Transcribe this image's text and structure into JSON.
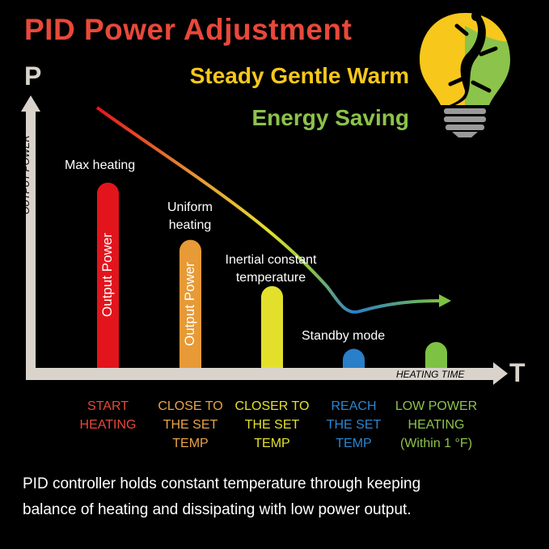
{
  "header": {
    "title": "PID Power Adjustment",
    "subtitle1": "Steady Gentle Warm",
    "subtitle2": "Energy Saving",
    "logo": "gecko-lightbulb-logo"
  },
  "colors": {
    "title": "#e8483a",
    "yellow": "#f7c71c",
    "green": "#8cc34a",
    "axis": "#d9d3cc",
    "red": "#e3151c",
    "orange": "#e79a35",
    "lime": "#e3e02c",
    "blue": "#2a7fc9",
    "lightgreen": "#7dc242"
  },
  "chart_data": {
    "type": "bar",
    "y_axis_letter": "P",
    "x_axis_letter": "T",
    "ylabel": "OUTPUT POWER",
    "xlabel": "HEATING TIME",
    "bar_text": "Output Power",
    "categories": [
      [
        "START",
        "HEATING"
      ],
      [
        "CLOSE TO",
        "THE SET",
        "TEMP"
      ],
      [
        "CLOSER TO",
        "THE SET",
        "TEMP"
      ],
      [
        "REACH",
        "THE SET",
        "TEMP"
      ],
      [
        "LOW POWER",
        "HEATING",
        "(Within 1 °F)"
      ]
    ],
    "annotations": [
      "Max heating",
      [
        "Uniform",
        "heating"
      ],
      [
        "Inertial constant",
        "temperature"
      ],
      "Standby mode"
    ],
    "values": [
      68,
      47,
      30,
      7,
      9.5
    ],
    "ylim": [
      0,
      100
    ],
    "bar_colors": [
      "#e3151c",
      "#e79a35",
      "#e3e02c",
      "#2a7fc9",
      "#7dc242"
    ],
    "trend_line": "decreasing power curve from red to green, leveling off at low power"
  },
  "footer": {
    "line1": "PID controller holds constant temperature through keeping",
    "line2": "balance of heating and dissipating with low power output."
  }
}
